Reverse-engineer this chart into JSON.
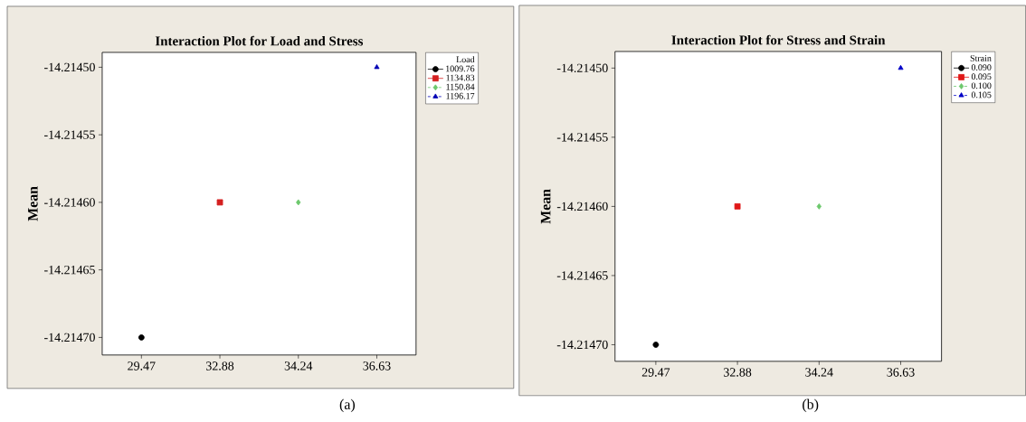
{
  "chart_data": [
    {
      "type": "line",
      "title": "Interaction Plot for Load and Stress",
      "ylabel": "Mean",
      "legend_title": "Load",
      "legend": "top right",
      "categories": [
        "29.47",
        "32.88",
        "34.24",
        "36.63"
      ],
      "ylim": [
        -14.214713,
        -14.214489
      ],
      "yticks": [
        {
          "value": -14.2145,
          "label": "-14.21450"
        },
        {
          "value": -14.21455,
          "label": "-14.21455"
        },
        {
          "value": -14.2146,
          "label": "-14.21460"
        },
        {
          "value": -14.21465,
          "label": "-14.21465"
        },
        {
          "value": -14.2147,
          "label": "-14.21470"
        }
      ],
      "series": [
        {
          "name": "1009.76",
          "color": "#000000",
          "marker": "circle",
          "line_style": "solid",
          "values": [
            -14.2147,
            null,
            null,
            null
          ]
        },
        {
          "name": "1134.83",
          "color": "#d42020",
          "marker": "square",
          "line_style": "solid",
          "values": [
            null,
            -14.2146,
            null,
            null
          ]
        },
        {
          "name": "1150.84",
          "color": "#6cc86c",
          "marker": "diamond",
          "line_style": "dashed",
          "values": [
            null,
            null,
            -14.2146,
            null
          ]
        },
        {
          "name": "1196.17",
          "color": "#0000b4",
          "marker": "triangle",
          "line_style": "dashed",
          "values": [
            null,
            null,
            null,
            -14.2145
          ]
        }
      ],
      "annotations": [
        "(a)"
      ]
    },
    {
      "type": "line",
      "title": "Interaction Plot for Stress and Strain",
      "ylabel": "Mean",
      "legend_title": "Strain",
      "legend": "top right",
      "categories": [
        "29.47",
        "32.88",
        "34.24",
        "36.63"
      ],
      "ylim": [
        -14.214712,
        -14.214488
      ],
      "yticks": [
        {
          "value": -14.2145,
          "label": "-14.21450"
        },
        {
          "value": -14.21455,
          "label": "-14.21455"
        },
        {
          "value": -14.2146,
          "label": "-14.21460"
        },
        {
          "value": -14.21465,
          "label": "-14.21465"
        },
        {
          "value": -14.2147,
          "label": "-14.21470"
        }
      ],
      "series": [
        {
          "name": "0.090",
          "color": "#000000",
          "marker": "circle",
          "line_style": "solid",
          "values": [
            -14.2147,
            null,
            null,
            null
          ]
        },
        {
          "name": "0.095",
          "color": "#e01818",
          "marker": "square",
          "line_style": "solid",
          "values": [
            null,
            -14.2146,
            null,
            null
          ]
        },
        {
          "name": "0.100",
          "color": "#6cc86c",
          "marker": "diamond",
          "line_style": "dashed",
          "values": [
            null,
            null,
            -14.2146,
            null
          ]
        },
        {
          "name": "0.105",
          "color": "#0000c8",
          "marker": "triangle",
          "line_style": "dashed",
          "values": [
            null,
            null,
            null,
            -14.2145
          ]
        }
      ],
      "annotations": [
        "(b)"
      ]
    }
  ]
}
